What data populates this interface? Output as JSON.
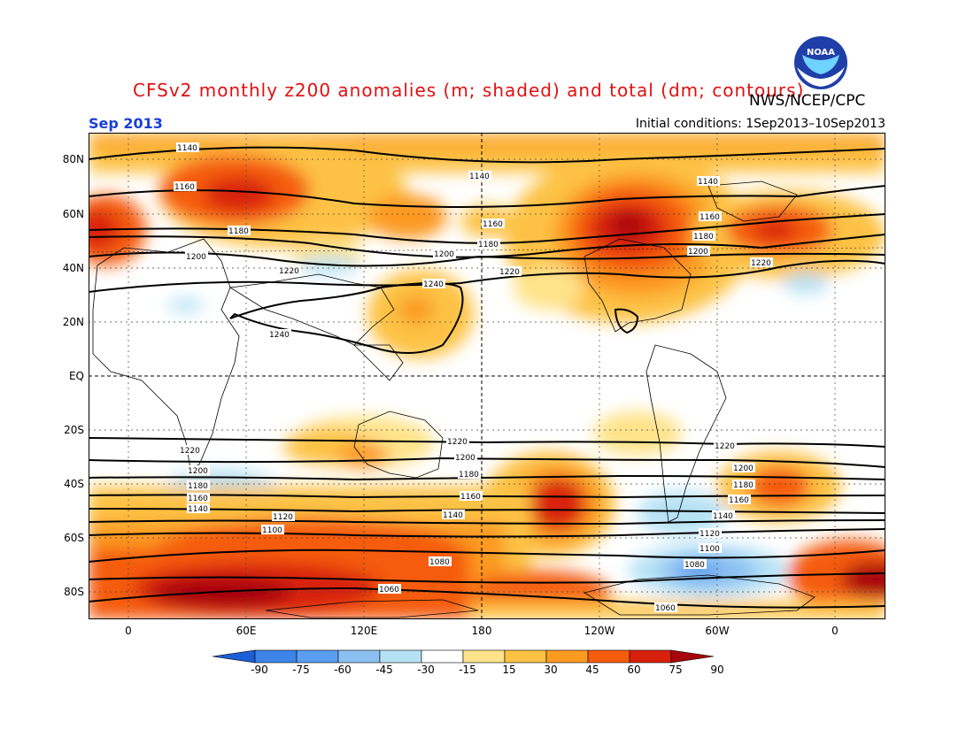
{
  "title": "CFSv2 monthly z200 anomalies (m; shaded) and total (dm; contours)",
  "organization": "NWS/NCEP/CPC",
  "month": "Sep 2013",
  "initial_conditions": "Initial conditions: 1Sep2013–10Sep2013",
  "logo_text": "NOAA",
  "lat_labels": [
    "80N",
    "60N",
    "40N",
    "20N",
    "EQ",
    "20S",
    "40S",
    "60S",
    "80S"
  ],
  "lon_labels": [
    "0",
    "60E",
    "120E",
    "180",
    "120W",
    "60W",
    "0"
  ],
  "colorbar_labels": [
    "-90",
    "-75",
    "-60",
    "-45",
    "-30",
    "-15",
    "15",
    "30",
    "45",
    "60",
    "75",
    "90"
  ],
  "colorbar_colors": [
    "#1a5fd8",
    "#3c84e8",
    "#5a9ef0",
    "#8cc0f2",
    "#b6e2f5",
    "#ffffff",
    "#ffe38a",
    "#fdc245",
    "#fc9a22",
    "#f55c0c",
    "#d8200a",
    "#a8060b"
  ],
  "contour_labels": {
    "nh_1140": "1140",
    "nh_1160": "1160",
    "nh_1180": "1180",
    "nh_1200": "1200",
    "nh_1220": "1220",
    "nh_1240": "1240",
    "sh_1220": "1220",
    "sh_1200": "1200",
    "sh_1180": "1180",
    "sh_1160": "1160",
    "sh_1140": "1140",
    "sh_1120": "1120",
    "sh_1100": "1100",
    "sh_1080": "1080",
    "sh_1060": "1060"
  }
}
